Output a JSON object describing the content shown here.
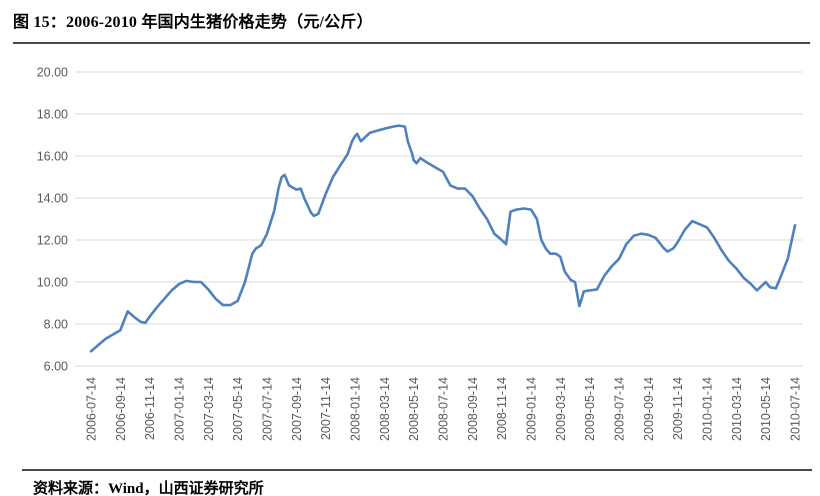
{
  "figure": {
    "title": "图 15：2006-2010 年国内生猪价格走势（元/公斤）",
    "source": "资料来源：Wind，山西证券研究所"
  },
  "colors": {
    "line": "#4F81BD",
    "grid": "#D9D9D9",
    "axis_text": "#595959",
    "divider": "#4a4a4a",
    "background": "#FFFFFF"
  },
  "chart_data": {
    "type": "line",
    "title": "2006-2010 年国内生猪价格走势（元/公斤）",
    "xlabel": "",
    "ylabel": "元/公斤",
    "ylim": [
      6,
      20
    ],
    "ytick_step": 2,
    "ytick_labels": [
      "20.00",
      "18.00",
      "16.00",
      "14.00",
      "12.00",
      "10.00",
      "8.00",
      "6.00"
    ],
    "ytick_values": [
      20,
      18,
      16,
      14,
      12,
      10,
      8,
      6
    ],
    "xtick_labels": [
      "2006-07-14",
      "2006-09-14",
      "2006-11-14",
      "2007-01-14",
      "2007-03-14",
      "2007-05-14",
      "2007-07-14",
      "2007-09-14",
      "2007-11-14",
      "2008-01-14",
      "2008-03-14",
      "2008-05-14",
      "2008-07-14",
      "2008-09-14",
      "2008-11-14",
      "2009-01-14",
      "2009-03-14",
      "2009-05-14",
      "2009-07-14",
      "2009-09-14",
      "2009-11-14",
      "2010-01-14",
      "2010-03-14",
      "2010-05-14",
      "2010-07-14"
    ],
    "months_per_xtick": 2,
    "grid": true,
    "legend": "none",
    "series": [
      {
        "name": "生猪价格",
        "unit": "元/公斤",
        "points_format": "[months_since_2006-07-14, price]",
        "points": [
          [
            0,
            6.7
          ],
          [
            0.5,
            7.0
          ],
          [
            1,
            7.3
          ],
          [
            1.5,
            7.5
          ],
          [
            2,
            7.7
          ],
          [
            2.5,
            8.6
          ],
          [
            3,
            8.3
          ],
          [
            3.4,
            8.1
          ],
          [
            3.7,
            8.05
          ],
          [
            4,
            8.35
          ],
          [
            4.5,
            8.8
          ],
          [
            5,
            9.2
          ],
          [
            5.5,
            9.6
          ],
          [
            6,
            9.9
          ],
          [
            6.5,
            10.05
          ],
          [
            7,
            10.0
          ],
          [
            7.5,
            10.0
          ],
          [
            8,
            9.65
          ],
          [
            8.5,
            9.2
          ],
          [
            9,
            8.9
          ],
          [
            9.5,
            8.9
          ],
          [
            10,
            9.1
          ],
          [
            10.5,
            10.0
          ],
          [
            11,
            11.35
          ],
          [
            11.25,
            11.6
          ],
          [
            11.6,
            11.75
          ],
          [
            12,
            12.3
          ],
          [
            12.5,
            13.4
          ],
          [
            12.8,
            14.5
          ],
          [
            13,
            15.0
          ],
          [
            13.2,
            15.1
          ],
          [
            13.5,
            14.6
          ],
          [
            14,
            14.4
          ],
          [
            14.3,
            14.45
          ],
          [
            14.6,
            13.9
          ],
          [
            15,
            13.3
          ],
          [
            15.2,
            13.15
          ],
          [
            15.5,
            13.25
          ],
          [
            16,
            14.2
          ],
          [
            16.5,
            15.0
          ],
          [
            17,
            15.55
          ],
          [
            17.5,
            16.1
          ],
          [
            17.8,
            16.7
          ],
          [
            18,
            16.95
          ],
          [
            18.15,
            17.05
          ],
          [
            18.4,
            16.7
          ],
          [
            18.7,
            16.9
          ],
          [
            19,
            17.1
          ],
          [
            19.5,
            17.2
          ],
          [
            20,
            17.3
          ],
          [
            20.6,
            17.4
          ],
          [
            21,
            17.45
          ],
          [
            21.4,
            17.4
          ],
          [
            21.6,
            16.7
          ],
          [
            21.9,
            16.1
          ],
          [
            22,
            15.8
          ],
          [
            22.2,
            15.65
          ],
          [
            22.45,
            15.9
          ],
          [
            23,
            15.65
          ],
          [
            23.5,
            15.45
          ],
          [
            24,
            15.25
          ],
          [
            24.5,
            14.6
          ],
          [
            25,
            14.45
          ],
          [
            25.5,
            14.45
          ],
          [
            26,
            14.1
          ],
          [
            26.5,
            13.5
          ],
          [
            27,
            13.0
          ],
          [
            27.5,
            12.3
          ],
          [
            28,
            12.0
          ],
          [
            28.3,
            11.8
          ],
          [
            28.6,
            13.35
          ],
          [
            29,
            13.45
          ],
          [
            29.5,
            13.5
          ],
          [
            30,
            13.45
          ],
          [
            30.4,
            13.0
          ],
          [
            30.7,
            12.0
          ],
          [
            31,
            11.6
          ],
          [
            31.3,
            11.35
          ],
          [
            31.7,
            11.35
          ],
          [
            32,
            11.2
          ],
          [
            32.3,
            10.5
          ],
          [
            32.7,
            10.1
          ],
          [
            33,
            10.0
          ],
          [
            33.3,
            8.85
          ],
          [
            33.6,
            9.55
          ],
          [
            34,
            9.6
          ],
          [
            34.5,
            9.65
          ],
          [
            35,
            10.3
          ],
          [
            35.5,
            10.75
          ],
          [
            36,
            11.1
          ],
          [
            36.5,
            11.8
          ],
          [
            37,
            12.2
          ],
          [
            37.5,
            12.3
          ],
          [
            38,
            12.25
          ],
          [
            38.5,
            12.1
          ],
          [
            39,
            11.65
          ],
          [
            39.3,
            11.45
          ],
          [
            39.7,
            11.6
          ],
          [
            40,
            11.9
          ],
          [
            40.5,
            12.5
          ],
          [
            41,
            12.9
          ],
          [
            41.5,
            12.75
          ],
          [
            42,
            12.6
          ],
          [
            42.5,
            12.1
          ],
          [
            43,
            11.5
          ],
          [
            43.5,
            11.0
          ],
          [
            44,
            10.65
          ],
          [
            44.5,
            10.2
          ],
          [
            45,
            9.9
          ],
          [
            45.4,
            9.6
          ],
          [
            46,
            10.0
          ],
          [
            46.3,
            9.75
          ],
          [
            46.7,
            9.7
          ],
          [
            47,
            10.2
          ],
          [
            47.5,
            11.1
          ],
          [
            48,
            12.7
          ]
        ]
      }
    ]
  }
}
